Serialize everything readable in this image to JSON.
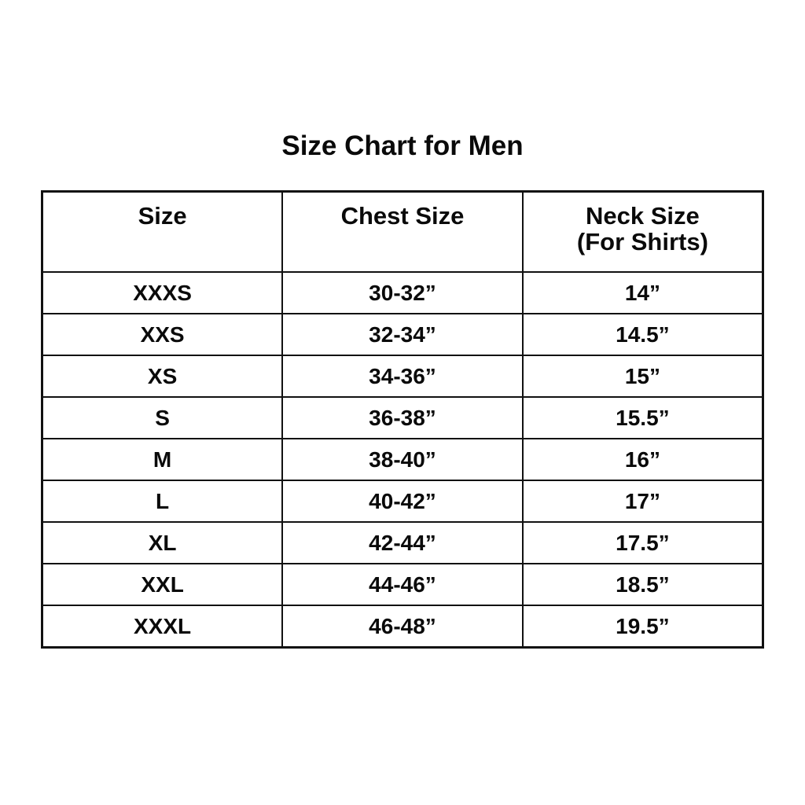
{
  "chart_data": {
    "type": "table",
    "title": "Size Chart for Men",
    "columns": [
      "Size",
      "Chest Size",
      "Neck Size (For Shirts)"
    ],
    "rows": [
      [
        "XXXS",
        "30-32”",
        "14”"
      ],
      [
        "XXS",
        "32-34”",
        "14.5”"
      ],
      [
        "XS",
        "34-36”",
        "15”"
      ],
      [
        "S",
        "36-38”",
        "15.5”"
      ],
      [
        "M",
        "38-40”",
        "16”"
      ],
      [
        "L",
        "40-42”",
        "17”"
      ],
      [
        "XL",
        "42-44”",
        "17.5”"
      ],
      [
        "XXL",
        "44-46”",
        "18.5”"
      ],
      [
        "XXXL",
        "46-48”",
        "19.5”"
      ]
    ]
  },
  "headers_display": [
    {
      "line1": "Size",
      "line2": ""
    },
    {
      "line1": "Chest Size",
      "line2": ""
    },
    {
      "line1": "Neck Size",
      "line2": "(For Shirts)"
    }
  ],
  "colors": {
    "background": "#ffffff",
    "text": "#0a0a0a",
    "border": "#111111"
  }
}
